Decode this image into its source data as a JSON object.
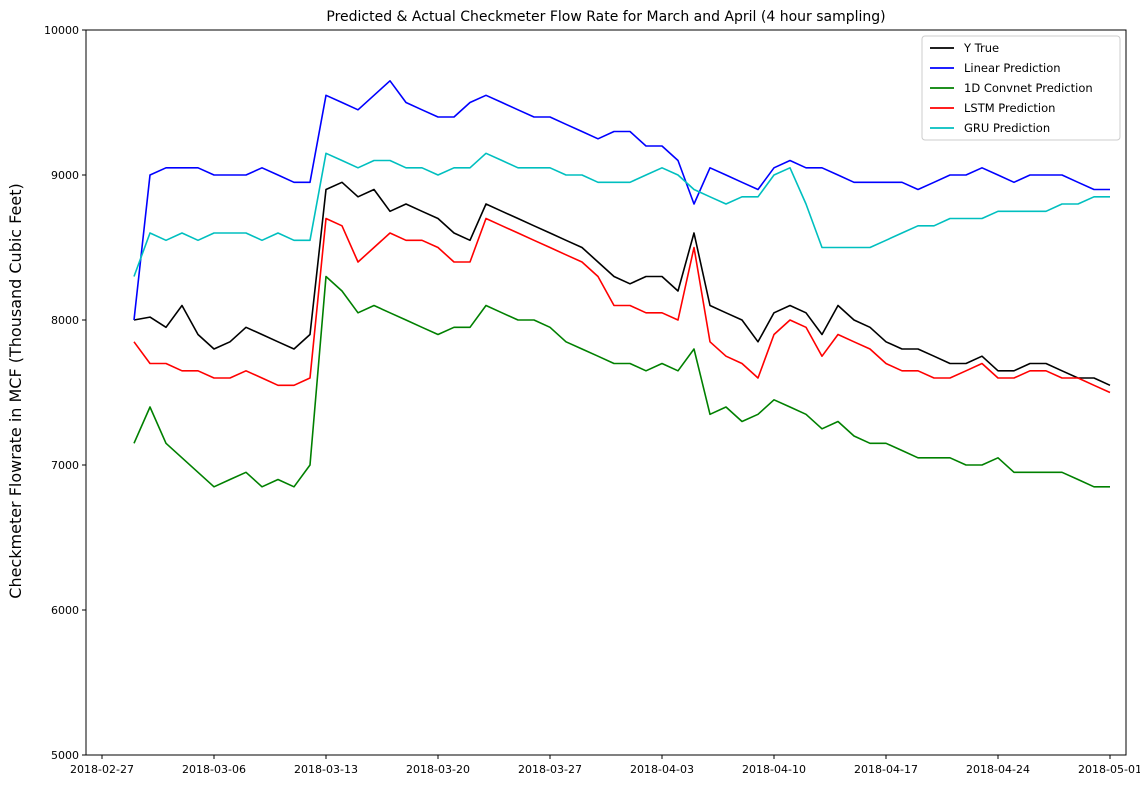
{
  "chart_data": {
    "type": "line",
    "title": "Predicted & Actual Checkmeter Flow Rate for March and April (4 hour sampling)",
    "xlabel": "",
    "ylabel": "Checkmeter Flowrate in MCF (Thousand Cubic Feet)",
    "x_axis_type": "date",
    "xlim": [
      "2018-02-26",
      "2018-05-02"
    ],
    "ylim": [
      5000,
      10000
    ],
    "x_ticks": [
      "2018-02-27",
      "2018-03-06",
      "2018-03-13",
      "2018-03-20",
      "2018-03-27",
      "2018-04-03",
      "2018-04-10",
      "2018-04-17",
      "2018-04-24",
      "2018-05-01"
    ],
    "y_ticks": [
      5000,
      6000,
      7000,
      8000,
      9000,
      10000
    ],
    "grid": false,
    "legend": "top-right",
    "x": [
      "2018-03-01",
      "2018-03-02",
      "2018-03-03",
      "2018-03-04",
      "2018-03-05",
      "2018-03-06",
      "2018-03-07",
      "2018-03-08",
      "2018-03-09",
      "2018-03-10",
      "2018-03-11",
      "2018-03-12",
      "2018-03-13",
      "2018-03-14",
      "2018-03-15",
      "2018-03-16",
      "2018-03-17",
      "2018-03-18",
      "2018-03-19",
      "2018-03-20",
      "2018-03-21",
      "2018-03-22",
      "2018-03-23",
      "2018-03-24",
      "2018-03-25",
      "2018-03-26",
      "2018-03-27",
      "2018-03-28",
      "2018-03-29",
      "2018-03-30",
      "2018-03-31",
      "2018-04-01",
      "2018-04-02",
      "2018-04-03",
      "2018-04-04",
      "2018-04-05",
      "2018-04-06",
      "2018-04-07",
      "2018-04-08",
      "2018-04-09",
      "2018-04-10",
      "2018-04-11",
      "2018-04-12",
      "2018-04-13",
      "2018-04-14",
      "2018-04-15",
      "2018-04-16",
      "2018-04-17",
      "2018-04-18",
      "2018-04-19",
      "2018-04-20",
      "2018-04-21",
      "2018-04-22",
      "2018-04-23",
      "2018-04-24",
      "2018-04-25",
      "2018-04-26",
      "2018-04-27",
      "2018-04-28",
      "2018-04-29",
      "2018-04-30",
      "2018-05-01"
    ],
    "series": [
      {
        "name": "Y True",
        "color": "#000000",
        "values": [
          8000,
          8020,
          7950,
          8100,
          7900,
          7800,
          7850,
          7950,
          7900,
          7850,
          7800,
          7900,
          8900,
          8950,
          8850,
          8900,
          8750,
          8800,
          8750,
          8700,
          8600,
          8550,
          8800,
          8750,
          8700,
          8650,
          8600,
          8550,
          8500,
          8400,
          8300,
          8250,
          8300,
          8300,
          8200,
          8600,
          8100,
          8050,
          8000,
          7850,
          8050,
          8100,
          8050,
          7900,
          8100,
          8000,
          7950,
          7850,
          7800,
          7800,
          7750,
          7700,
          7700,
          7750,
          7650,
          7650,
          7700,
          7700,
          7650,
          7600,
          7600,
          7550
        ]
      },
      {
        "name": "Linear Prediction",
        "color": "#0000ff",
        "values": [
          8000,
          9000,
          9050,
          9050,
          9050,
          9000,
          9000,
          9000,
          9050,
          9000,
          8950,
          8950,
          9550,
          9500,
          9450,
          9550,
          9650,
          9500,
          9450,
          9400,
          9400,
          9500,
          9550,
          9500,
          9450,
          9400,
          9400,
          9350,
          9300,
          9250,
          9300,
          9300,
          9200,
          9200,
          9100,
          8800,
          9050,
          9000,
          8950,
          8900,
          9050,
          9100,
          9050,
          9050,
          9000,
          8950,
          8950,
          8950,
          8950,
          8900,
          8950,
          9000,
          9000,
          9050,
          9000,
          8950,
          9000,
          9000,
          9000,
          8950,
          8900,
          8900
        ]
      },
      {
        "name": "1D Convnet Prediction",
        "color": "#008000",
        "values": [
          7150,
          7400,
          7150,
          7050,
          6950,
          6850,
          6900,
          6950,
          6850,
          6900,
          6850,
          7000,
          8300,
          8200,
          8050,
          8100,
          8050,
          8000,
          7950,
          7900,
          7950,
          7950,
          8100,
          8050,
          8000,
          8000,
          7950,
          7850,
          7800,
          7750,
          7700,
          7700,
          7650,
          7700,
          7650,
          7800,
          7350,
          7400,
          7300,
          7350,
          7450,
          7400,
          7350,
          7250,
          7300,
          7200,
          7150,
          7150,
          7100,
          7050,
          7050,
          7050,
          7000,
          7000,
          7050,
          6950,
          6950,
          6950,
          6950,
          6900,
          6850,
          6850
        ]
      },
      {
        "name": "LSTM Prediction",
        "color": "#ff0000",
        "values": [
          7850,
          7700,
          7700,
          7650,
          7650,
          7600,
          7600,
          7650,
          7600,
          7550,
          7550,
          7600,
          8700,
          8650,
          8400,
          8500,
          8600,
          8550,
          8550,
          8500,
          8400,
          8400,
          8700,
          8650,
          8600,
          8550,
          8500,
          8450,
          8400,
          8300,
          8100,
          8100,
          8050,
          8050,
          8000,
          8500,
          7850,
          7750,
          7700,
          7600,
          7900,
          8000,
          7950,
          7750,
          7900,
          7850,
          7800,
          7700,
          7650,
          7650,
          7600,
          7600,
          7650,
          7700,
          7600,
          7600,
          7650,
          7650,
          7600,
          7600,
          7550,
          7500
        ]
      },
      {
        "name": "GRU Prediction",
        "color": "#00bfbf",
        "values": [
          8300,
          8600,
          8550,
          8600,
          8550,
          8600,
          8600,
          8600,
          8550,
          8600,
          8550,
          8550,
          9150,
          9100,
          9050,
          9100,
          9100,
          9050,
          9050,
          9000,
          9050,
          9050,
          9150,
          9100,
          9050,
          9050,
          9050,
          9000,
          9000,
          8950,
          8950,
          8950,
          9000,
          9050,
          9000,
          8900,
          8850,
          8800,
          8850,
          8850,
          9000,
          9050,
          8800,
          8500,
          8500,
          8500,
          8500,
          8550,
          8600,
          8650,
          8650,
          8700,
          8700,
          8700,
          8750,
          8750,
          8750,
          8750,
          8800,
          8800,
          8850,
          8850
        ]
      }
    ]
  }
}
